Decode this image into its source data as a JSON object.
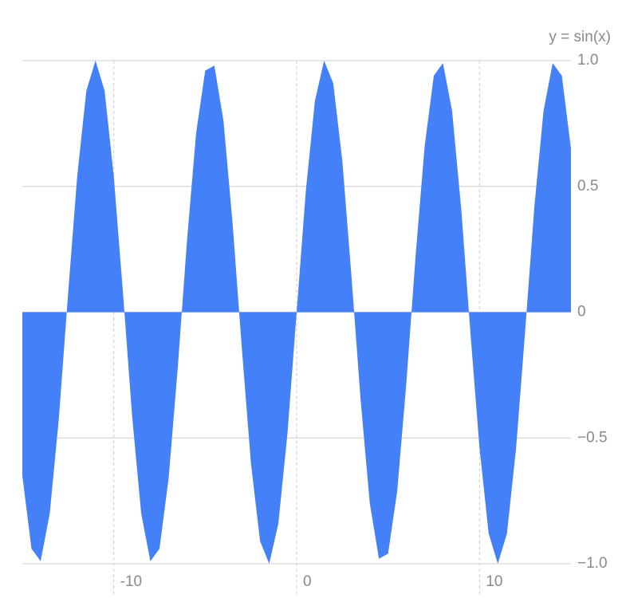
{
  "chart_data": {
    "type": "area",
    "y_axis_label": "y = sin(x)",
    "x": [
      -15,
      -14.5,
      -14,
      -13.5,
      -13,
      -12.5,
      -12,
      -11.5,
      -11,
      -10.5,
      -10,
      -9.5,
      -9,
      -8.5,
      -8,
      -7.5,
      -7,
      -6.5,
      -6,
      -5.5,
      -5,
      -4.5,
      -4,
      -3.5,
      -3,
      -2.5,
      -2,
      -1.5,
      -1,
      -0.5,
      0,
      0.5,
      1,
      1.5,
      2,
      2.5,
      3,
      3.5,
      4,
      4.5,
      5,
      5.5,
      6,
      6.5,
      7,
      7.5,
      8,
      8.5,
      9,
      9.5,
      10,
      10.5,
      11,
      11.5,
      12,
      12.5,
      13,
      13.5,
      14,
      14.5,
      15
    ],
    "values": [
      -0.65,
      -0.94,
      -0.99,
      -0.8,
      -0.42,
      0.07,
      0.54,
      0.88,
      1.0,
      0.88,
      0.54,
      0.08,
      -0.41,
      -0.8,
      -0.99,
      -0.94,
      -0.66,
      -0.22,
      0.28,
      0.71,
      0.96,
      0.98,
      0.76,
      0.35,
      -0.14,
      -0.6,
      -0.91,
      -1.0,
      -0.84,
      -0.48,
      0,
      0.48,
      0.84,
      1.0,
      0.91,
      0.6,
      0.14,
      -0.35,
      -0.76,
      -0.98,
      -0.96,
      -0.71,
      -0.28,
      0.22,
      0.66,
      0.94,
      0.99,
      0.8,
      0.41,
      -0.08,
      -0.54,
      -0.88,
      -1.0,
      -0.88,
      -0.54,
      -0.07,
      0.42,
      0.8,
      0.99,
      0.94,
      0.65
    ],
    "color": "#4480f7",
    "xlim": [
      -15,
      15
    ],
    "xticks": [
      -10,
      0,
      10
    ],
    "ylim": [
      -1,
      1
    ],
    "yticks": [
      {
        "value": 1,
        "label": "1.0"
      },
      {
        "value": 0.5,
        "label": "0.5"
      },
      0,
      {
        "value": -0.5,
        "label": "−0.5"
      },
      {
        "value": -1,
        "label": "−1.0"
      }
    ],
    "grid": true
  }
}
